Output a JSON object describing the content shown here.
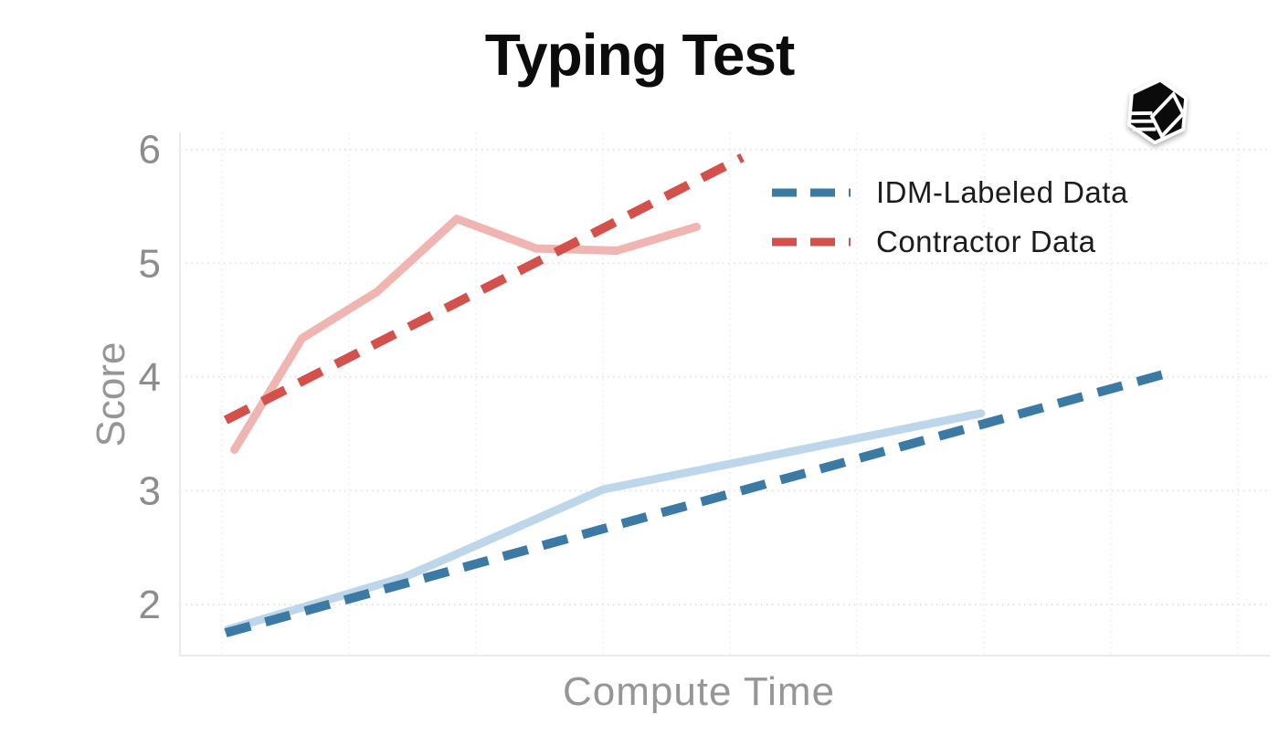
{
  "title": "Typing Test",
  "icons": {
    "logo": "hex-cube-logo"
  },
  "chart_data": {
    "type": "line",
    "title": "Typing Test",
    "xlabel": "Compute Time",
    "ylabel": "Score",
    "xlim": [
      0,
      1
    ],
    "ylim": [
      1.55,
      6.15
    ],
    "yticks": [
      2,
      3,
      4,
      5,
      6
    ],
    "x_gridlines": [
      0.0386,
      0.1551,
      0.2716,
      0.3881,
      0.5047,
      0.6212,
      0.7377,
      0.8542,
      0.9707
    ],
    "grid": "dotted",
    "legend_position": "upper right",
    "series": [
      {
        "name": "Contractor Data (training run)",
        "style": "solid",
        "color": "#f0b4b1",
        "x": [
          0.05,
          0.112,
          0.181,
          0.254,
          0.327,
          0.401,
          0.474
        ],
        "y": [
          3.36,
          4.34,
          4.75,
          5.39,
          5.13,
          5.11,
          5.32
        ]
      },
      {
        "name": "Contractor Data",
        "style": "dashed",
        "color": "#d4504a",
        "x": [
          0.042,
          0.516
        ],
        "y": [
          3.62,
          5.93
        ]
      },
      {
        "name": "IDM-Labeled Data (training run)",
        "style": "solid",
        "color": "#bdd6e9",
        "x": [
          0.044,
          0.206,
          0.388,
          0.735
        ],
        "y": [
          1.78,
          2.24,
          3.01,
          3.68
        ]
      },
      {
        "name": "IDM-Labeled Data",
        "style": "dashed",
        "color": "#3a7aa5",
        "x": [
          0.042,
          0.905
        ],
        "y": [
          1.75,
          4.03
        ]
      }
    ],
    "legend": [
      {
        "label": "IDM-Labeled Data",
        "color": "#3a7aa5"
      },
      {
        "label": "Contractor Data",
        "color": "#d4504a"
      }
    ]
  }
}
